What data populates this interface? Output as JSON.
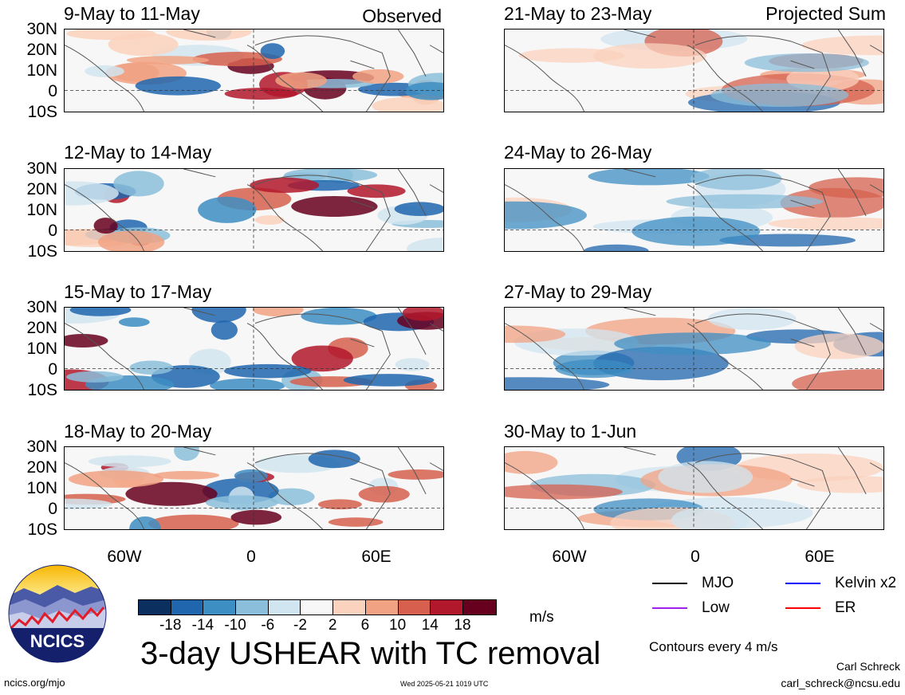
{
  "left_header_tag": "Observed",
  "right_header_tag": "Projected Sum",
  "lat_labels": [
    "30N",
    "20N",
    "10N",
    "0",
    "10S"
  ],
  "lon_labels": [
    "60W",
    "0",
    "60E"
  ],
  "panels_left": [
    {
      "title": "9-May to 11-May",
      "seed": 1
    },
    {
      "title": "12-May to 14-May",
      "seed": 2
    },
    {
      "title": "15-May to 17-May",
      "seed": 3
    },
    {
      "title": "18-May to 20-May",
      "seed": 4
    }
  ],
  "panels_right": [
    {
      "title": "21-May to 23-May",
      "seed": 5
    },
    {
      "title": "24-May to 26-May",
      "seed": 6
    },
    {
      "title": "27-May to 29-May",
      "seed": 7
    },
    {
      "title": "30-May to 1-Jun",
      "seed": 8
    }
  ],
  "colorbar": {
    "colors": [
      "#0b2f5f",
      "#1f66ae",
      "#3d8ec3",
      "#8bbedb",
      "#d1e5f0",
      "#f7f7f7",
      "#fbd2bd",
      "#f1a283",
      "#d6604d",
      "#b2182b",
      "#67001f"
    ],
    "labels": [
      "-18",
      "-14",
      "-10",
      "-6",
      "-2",
      "2",
      "6",
      "10",
      "14",
      "18"
    ],
    "units": "m/s"
  },
  "main_title": "3-day USHEAR with TC removal",
  "legend": [
    {
      "label": "MJO",
      "color": "#000000"
    },
    {
      "label": "Kelvin x2",
      "color": "#0000ff"
    },
    {
      "label": "Low",
      "color": "#a020f0"
    },
    {
      "label": "ER",
      "color": "#ff0000"
    }
  ],
  "contour_note": "Contours every 4 m/s",
  "author": "Carl Schreck",
  "email": "carl_schreck@ncsu.edu",
  "website": "ncics.org/mjo",
  "timestamp": "Wed 2025-05-21 1019 UTC",
  "logo_text": "NCICS"
}
